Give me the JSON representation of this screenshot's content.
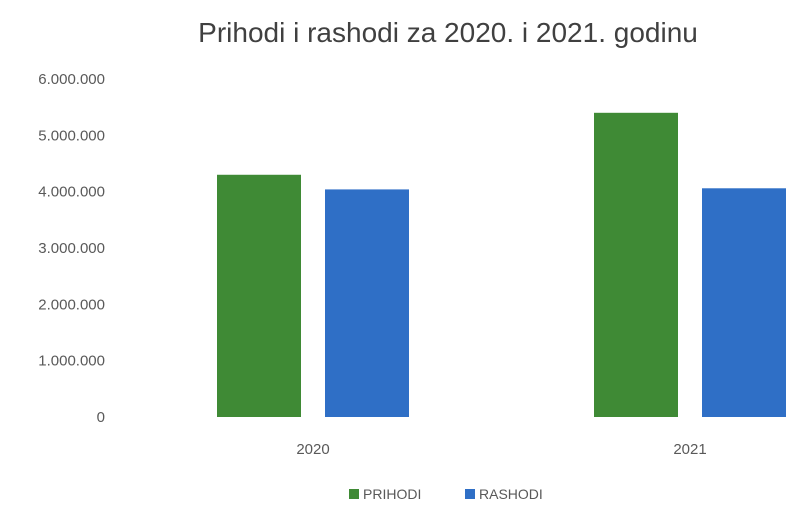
{
  "chart_data": {
    "type": "bar",
    "title": "Prihodi i  rashodi  za 2020. i 2021. godinu",
    "categories": [
      "2020",
      "2021"
    ],
    "series": [
      {
        "name": "PRIHODI",
        "color": "#3f8a35",
        "values": [
          4300000,
          5400000
        ]
      },
      {
        "name": "RASHODI",
        "color": "#2f6fc6",
        "values": [
          4040000,
          4060000
        ]
      }
    ],
    "ylim": [
      0,
      6000000
    ],
    "yticks": [
      "0",
      "1.000.000",
      "2.000.000",
      "3.000.000",
      "4.000.000",
      "5.000.000",
      "6.000.000"
    ],
    "ytick_values": [
      0,
      1000000,
      2000000,
      3000000,
      4000000,
      5000000,
      6000000
    ],
    "grid": false,
    "legend": "bottom",
    "xlabel": "",
    "ylabel": ""
  }
}
